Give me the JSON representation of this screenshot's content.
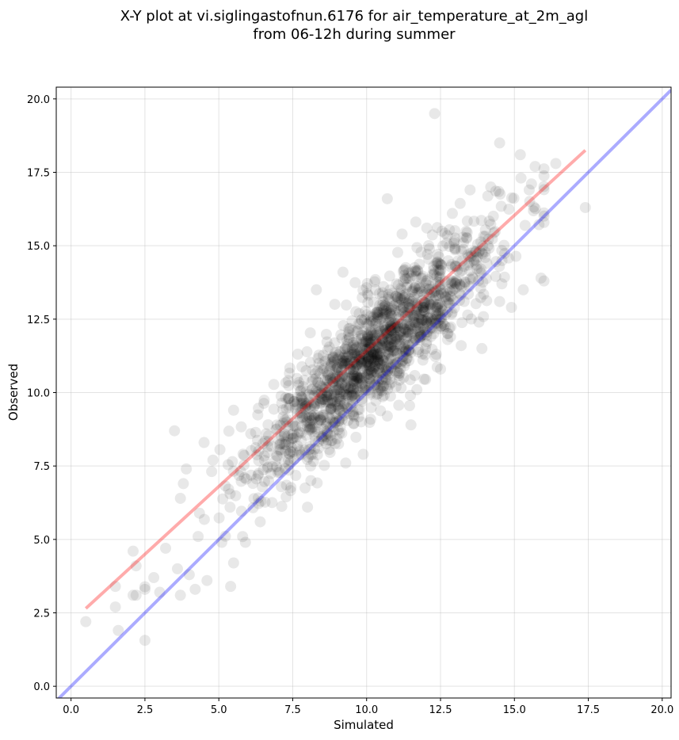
{
  "chart_data": {
    "type": "scatter",
    "title": [
      "X-Y plot at vi.siglingastofnun.6176 for air_temperature_at_2m_agl",
      "from 06-12h during summer"
    ],
    "xlabel": "Simulated",
    "ylabel": "Observed",
    "xlim": [
      -0.5,
      20.3
    ],
    "ylim": [
      -0.4,
      20.4
    ],
    "xticks": [
      0.0,
      2.5,
      5.0,
      7.5,
      10.0,
      12.5,
      15.0,
      17.5,
      20.0
    ],
    "xtick_labels": [
      "0.0",
      "2.5",
      "5.0",
      "7.5",
      "10.0",
      "12.5",
      "15.0",
      "17.5",
      "20.0"
    ],
    "yticks": [
      0.0,
      2.5,
      5.0,
      7.5,
      10.0,
      12.5,
      15.0,
      17.5,
      20.0
    ],
    "ytick_labels": [
      "0.0",
      "2.5",
      "5.0",
      "7.5",
      "10.0",
      "12.5",
      "15.0",
      "17.5",
      "20.0"
    ],
    "grid": true,
    "point_color": "#000000",
    "point_alpha": 0.09,
    "identity_line": {
      "color": "#0000ff",
      "alpha": 0.33
    },
    "fit_line": {
      "color": "#ff0000",
      "alpha": 0.33,
      "x": [
        0.5,
        17.4
      ],
      "y": [
        2.65,
        18.25
      ]
    },
    "cluster": {
      "n": 1550,
      "center_x": 10.3,
      "center_y": 11.4,
      "sd_x": 2.05,
      "slope": 0.92,
      "residual_sd": 0.95
    },
    "series": [
      {
        "values": [
          [
            0.5,
            2.2
          ],
          [
            1.5,
            2.7
          ],
          [
            1.6,
            1.9
          ],
          [
            1.5,
            3.4
          ],
          [
            2.1,
            4.6
          ],
          [
            2.2,
            4.1
          ],
          [
            2.1,
            3.1
          ],
          [
            2.5,
            3.3
          ],
          [
            2.2,
            3.1
          ],
          [
            2.8,
            3.7
          ],
          [
            3.0,
            3.2
          ],
          [
            3.2,
            4.7
          ],
          [
            3.5,
            8.7
          ],
          [
            3.7,
            6.4
          ],
          [
            3.9,
            7.4
          ],
          [
            3.8,
            6.9
          ],
          [
            3.6,
            4.0
          ],
          [
            4.0,
            3.8
          ],
          [
            4.2,
            3.3
          ],
          [
            3.7,
            3.1
          ],
          [
            4.6,
            3.6
          ],
          [
            4.3,
            5.1
          ],
          [
            4.5,
            8.3
          ],
          [
            4.8,
            7.7
          ],
          [
            5.5,
            9.4
          ],
          [
            5.1,
            4.9
          ],
          [
            5.4,
            3.4
          ],
          [
            5.5,
            4.2
          ],
          [
            5.9,
            4.9
          ],
          [
            6.4,
            5.6
          ],
          [
            8.0,
            6.1
          ],
          [
            8.3,
            13.5
          ],
          [
            9.2,
            14.1
          ],
          [
            10.7,
            16.6
          ],
          [
            10.7,
            9.2
          ],
          [
            11.5,
            8.9
          ],
          [
            11.7,
            10.1
          ],
          [
            12.3,
            19.5
          ],
          [
            12.5,
            10.8
          ],
          [
            13.2,
            11.6
          ],
          [
            13.9,
            11.5
          ],
          [
            14.5,
            18.5
          ],
          [
            14.5,
            13.1
          ],
          [
            15.2,
            18.1
          ],
          [
            15.3,
            13.5
          ],
          [
            15.7,
            17.7
          ],
          [
            15.9,
            13.9
          ],
          [
            16.0,
            13.8
          ],
          [
            16.4,
            17.8
          ],
          [
            17.4,
            16.3
          ],
          [
            15.5,
            16.9
          ],
          [
            14.2,
            17.0
          ],
          [
            13.5,
            16.9
          ],
          [
            12.9,
            16.1
          ],
          [
            11.2,
            15.4
          ],
          [
            12.8,
            12.2
          ],
          [
            13.8,
            12.4
          ],
          [
            14.9,
            12.9
          ]
        ]
      }
    ]
  }
}
